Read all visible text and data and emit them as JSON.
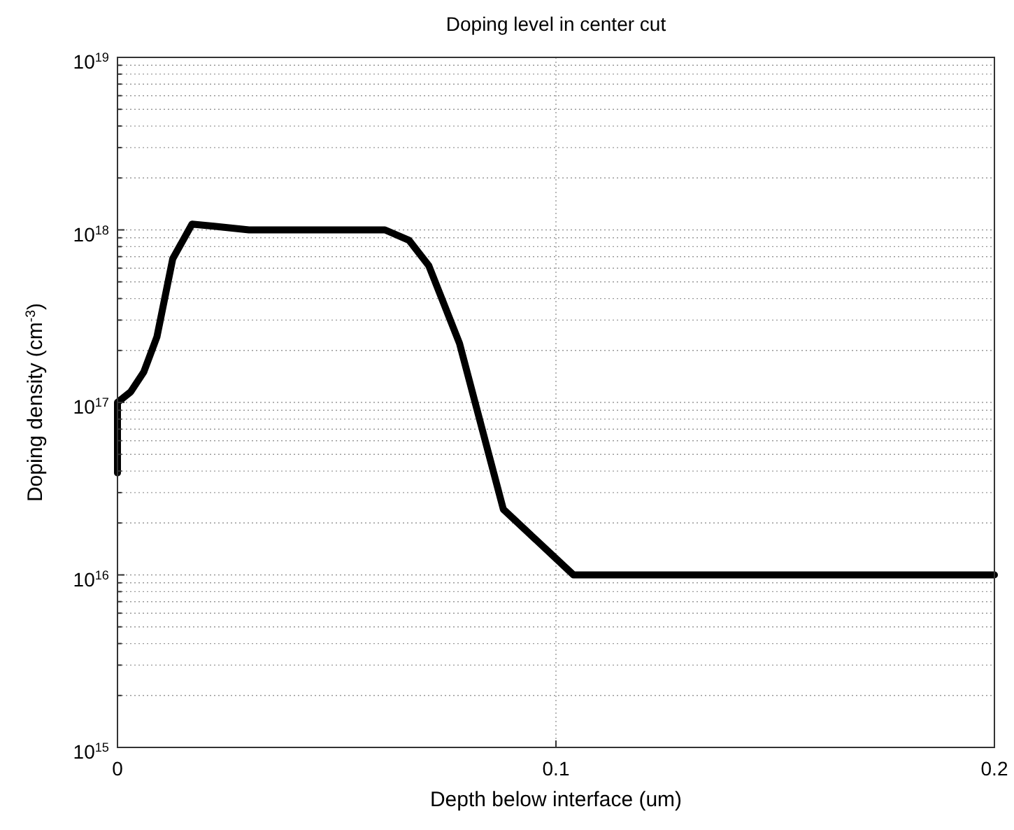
{
  "chart_data": {
    "type": "line",
    "title": "Doping level in center cut",
    "xlabel": "Depth below interface (um)",
    "ylabel": "Doping density (cm$^{-3}$)",
    "log": "y",
    "grid": true,
    "line_style": "solid",
    "marker": "none",
    "xlim": [
      0,
      0.2
    ],
    "xticks": [
      0,
      0.1,
      0.2
    ],
    "ylim": [
      1000000000000000.0,
      1e+19
    ],
    "yticks": [
      {
        "value": 1000000000000000.0,
        "label": "10$^{15}$"
      },
      {
        "value": 2000000000000000.0,
        "label": null
      },
      {
        "value": 3000000000000000.0,
        "label": null
      },
      {
        "value": 4000000000000000.0,
        "label": null
      },
      {
        "value": 5000000000000000.0,
        "label": null
      },
      {
        "value": 6000000000000000.0,
        "label": null
      },
      {
        "value": 7000000000000000.0,
        "label": null
      },
      {
        "value": 8000000000000000.0,
        "label": null
      },
      {
        "value": 9000000000000000.0,
        "label": null
      },
      {
        "value": 1e+16,
        "label": "10$^{16}$"
      },
      {
        "value": 2e+16,
        "label": null
      },
      {
        "value": 3e+16,
        "label": null
      },
      {
        "value": 4e+16,
        "label": null
      },
      {
        "value": 5e+16,
        "label": null
      },
      {
        "value": 6e+16,
        "label": null
      },
      {
        "value": 7e+16,
        "label": null
      },
      {
        "value": 8e+16,
        "label": null
      },
      {
        "value": 9e+16,
        "label": null
      },
      {
        "value": 1e+17,
        "label": "10$^{17}$"
      },
      {
        "value": 2e+17,
        "label": null
      },
      {
        "value": 3e+17,
        "label": null
      },
      {
        "value": 4e+17,
        "label": null
      },
      {
        "value": 5e+17,
        "label": null
      },
      {
        "value": 6e+17,
        "label": null
      },
      {
        "value": 7e+17,
        "label": null
      },
      {
        "value": 8e+17,
        "label": null
      },
      {
        "value": 9e+17,
        "label": null
      },
      {
        "value": 1e+18,
        "label": "10$^{18}$"
      },
      {
        "value": 2e+18,
        "label": null
      },
      {
        "value": 3e+18,
        "label": null
      },
      {
        "value": 4e+18,
        "label": null
      },
      {
        "value": 5e+18,
        "label": null
      },
      {
        "value": 6e+18,
        "label": null
      },
      {
        "value": 7e+18,
        "label": null
      },
      {
        "value": 8e+18,
        "label": null
      },
      {
        "value": 9e+18,
        "label": null
      },
      {
        "value": 1e+19,
        "label": "10$^{19}$"
      }
    ],
    "series": [
      {
        "color": "#000000",
        "x": [
          0,
          0,
          0.003,
          0.006,
          0.009,
          0.0126,
          0.017,
          0.022,
          0.03,
          0.05,
          0.061,
          0.0665,
          0.071,
          0.078,
          0.088,
          0.104,
          0.2
        ],
        "values": [
          3.9e+16,
          1e+17,
          1.15e+17,
          1.5e+17,
          2.4e+17,
          6.8e+17,
          1.08e+18,
          1.05e+18,
          1e+18,
          1e+18,
          1e+18,
          8.7e+17,
          6.2e+17,
          2.2e+17,
          2.4e+16,
          1e+16,
          1e+16
        ]
      }
    ]
  }
}
